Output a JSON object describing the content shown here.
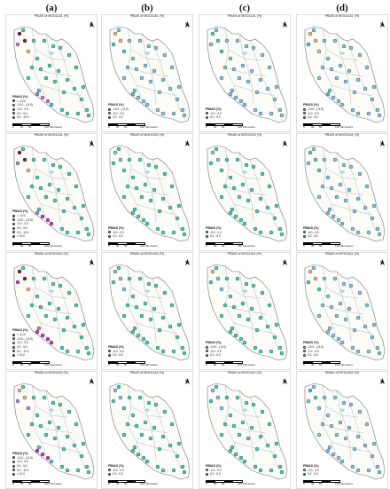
{
  "columns": [
    "(a)",
    "(b)",
    "(c)",
    "(d)"
  ],
  "colors": {
    "deep_red": "#8e1414",
    "orange": "#f2b27e",
    "light_blue": "#7ec8e3",
    "teal": "#3fd3b5",
    "violet": "#b27fe0",
    "magenta": "#cc2fbf",
    "outline": "#777777",
    "lake": "#a8d8ea"
  },
  "scale": {
    "labels": [
      "0",
      "30",
      "60",
      "120 Kilometers"
    ]
  },
  "north_label": "N",
  "legend_title": "PBIAS (%)",
  "legend_sets": {
    "A": [
      {
        "label": "< -10.0",
        "color": "#8e1414"
      },
      {
        "label": "-10.0 - (-5.0)",
        "color": "#f2b27e"
      },
      {
        "label": "-5.0 - 0.0",
        "color": "#7ec8e3"
      },
      {
        "label": "0.0 - 5.0",
        "color": "#3fd3b5"
      },
      {
        "label": "5.0 - 10.0",
        "color": "#b27fe0"
      }
    ],
    "B": [
      {
        "label": "-10.0 - (-5.0)",
        "color": "#f2b27e"
      },
      {
        "label": "-5.0 - 0.0",
        "color": "#7ec8e3"
      },
      {
        "label": "0.0 - 5.0",
        "color": "#3fd3b5"
      }
    ],
    "C": [
      {
        "label": "-5.0 - 0.0",
        "color": "#7ec8e3"
      },
      {
        "label": "0.0 - 5.0",
        "color": "#3fd3b5"
      }
    ],
    "D": [
      {
        "label": "< -10.0",
        "color": "#8e1414"
      },
      {
        "label": "-10.0 - (-5.0)",
        "color": "#f2b27e"
      },
      {
        "label": "-5.0 - 0.0",
        "color": "#7ec8e3"
      },
      {
        "label": "0.0 - 5.0",
        "color": "#3fd3b5"
      },
      {
        "label": "5.0 - 10.0",
        "color": "#b27fe0"
      },
      {
        "label": "> 10.0",
        "color": "#cc2fbf"
      }
    ],
    "E": [
      {
        "label": "< -10.0",
        "color": "#8e1414"
      },
      {
        "label": "-10.0 - (-5.0)",
        "color": "#f2b27e"
      },
      {
        "label": "-5.0 - 0.0",
        "color": "#7ec8e3"
      },
      {
        "label": "0.0 - 5.0",
        "color": "#3fd3b5"
      },
      {
        "label": "5.0 - 10.0",
        "color": "#b27fe0"
      },
      {
        "label": "> 10.0",
        "color": "#cc2fbf"
      }
    ],
    "F": [
      {
        "label": "-10.0 - (-5.0)",
        "color": "#f2b27e"
      },
      {
        "label": "-5.0 - 0.0",
        "color": "#7ec8e3"
      },
      {
        "label": "0.0 - 5.0",
        "color": "#3fd3b5"
      },
      {
        "label": "5.0 - 10.0",
        "color": "#b27fe0"
      },
      {
        "label": "> 10.0",
        "color": "#cc2fbf"
      }
    ]
  },
  "panels": [
    {
      "title": "PBIAS of MOD11A1 (%)",
      "legend": "A",
      "dominant": "teal",
      "accents": [
        "deep_red",
        "deep_red",
        "orange",
        "violet",
        "violet",
        "violet",
        "violet"
      ]
    },
    {
      "title": "PBIAS of MOD11A1 (%)",
      "legend": "B",
      "dominant": "light_blue",
      "accents": [
        "orange",
        "orange",
        "teal",
        "teal",
        "teal"
      ]
    },
    {
      "title": "PBIAS of MOD11A1 (%)",
      "legend": "C",
      "dominant": "light_blue",
      "accents": [
        "teal",
        "teal",
        "teal"
      ]
    },
    {
      "title": "PBIAS of MOD11A1 (%)",
      "legend": "B",
      "dominant": "light_blue",
      "accents": [
        "orange",
        "orange",
        "orange",
        "teal",
        "teal"
      ]
    },
    {
      "title": "PBIAS of MOD11A1 (%)",
      "legend": "D",
      "dominant": "teal",
      "accents": [
        "deep_red",
        "deep_red",
        "orange",
        "violet",
        "violet",
        "magenta",
        "magenta",
        "magenta"
      ]
    },
    {
      "title": "PBIAS of MOD11A2 (%)",
      "legend": "C",
      "dominant": "teal",
      "accents": [
        "light_blue",
        "light_blue"
      ]
    },
    {
      "title": "PBIAS of MOD11A2 (%)",
      "legend": "C",
      "dominant": "teal",
      "accents": [
        "light_blue",
        "light_blue"
      ]
    },
    {
      "title": "PBIAS of MOD11A2 (%)",
      "legend": "C",
      "dominant": "light_blue",
      "accents": [
        "teal",
        "teal",
        "teal"
      ]
    },
    {
      "title": "PBIAS of MYD11A2 (%)",
      "legend": "E",
      "dominant": "teal",
      "accents": [
        "deep_red",
        "deep_red",
        "orange",
        "magenta",
        "magenta",
        "magenta",
        "magenta",
        "magenta",
        "violet"
      ]
    },
    {
      "title": "PBIAS of MYD11A2 (%)",
      "legend": "C",
      "dominant": "teal",
      "accents": [
        "light_blue",
        "light_blue",
        "light_blue"
      ]
    },
    {
      "title": "PBIAS of MYD11A1 (%)",
      "legend": "B",
      "dominant": "teal",
      "accents": [
        "orange",
        "light_blue",
        "light_blue"
      ]
    },
    {
      "title": "PBIAS of MYD11A1 (%)",
      "legend": "B",
      "dominant": "light_blue",
      "accents": [
        "orange",
        "orange",
        "teal",
        "teal"
      ]
    },
    {
      "title": "PBIAS of MYD11A2 (%)",
      "legend": "F",
      "dominant": "teal",
      "accents": [
        "orange",
        "orange",
        "violet",
        "violet",
        "magenta",
        "magenta",
        "magenta"
      ]
    },
    {
      "title": "PBIAS of MOD11A2 (%)",
      "legend": "C",
      "dominant": "teal",
      "accents": [
        "light_blue",
        "light_blue"
      ]
    },
    {
      "title": "PBIAS of MYD11A2 (%)",
      "legend": "C",
      "dominant": "teal",
      "accents": [
        "light_blue",
        "light_blue",
        "light_blue"
      ]
    },
    {
      "title": "PBIAS of MYD11A2 (%)",
      "legend": "C",
      "dominant": "light_blue",
      "accents": [
        "teal",
        "teal"
      ]
    }
  ]
}
